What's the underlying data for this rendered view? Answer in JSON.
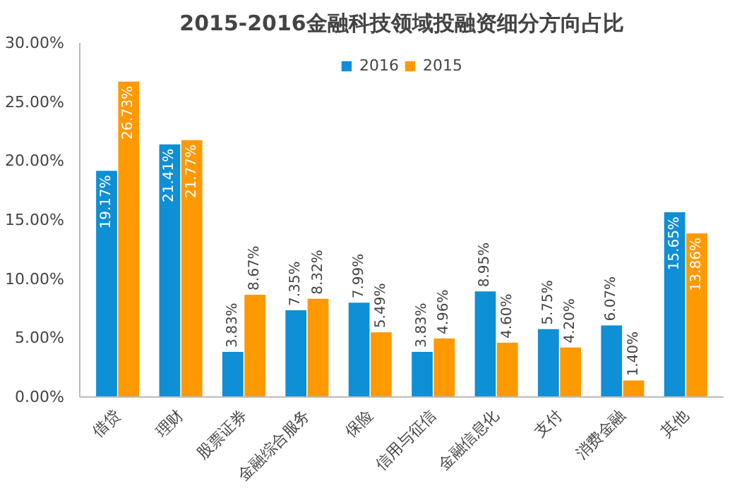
{
  "chart_data": {
    "type": "bar",
    "title": "2015-2016金融科技领域投融资细分方向占比",
    "categories": [
      "借贷",
      "理财",
      "股票证券",
      "金融综合服务",
      "保险",
      "信用与征信",
      "金融信息化",
      "支付",
      "消费金融",
      "其他"
    ],
    "series": [
      {
        "name": "2016",
        "color": "#0e8fd6",
        "values": [
          19.17,
          21.41,
          3.83,
          7.35,
          7.99,
          3.83,
          8.95,
          5.75,
          6.07,
          15.65
        ],
        "value_labels": [
          "19.17%",
          "21.41%",
          "3.83%",
          "7.35%",
          "7.99%",
          "3.83%",
          "8.95%",
          "5.75%",
          "6.07%",
          "15.65%"
        ]
      },
      {
        "name": "2015",
        "color": "#ff9900",
        "values": [
          26.73,
          21.77,
          8.67,
          8.32,
          5.49,
          4.96,
          4.6,
          4.2,
          1.4,
          13.86
        ],
        "value_labels": [
          "26.73%",
          "21.77%",
          "8.67%",
          "8.32%",
          "5.49%",
          "4.96%",
          "4.60%",
          "4.20%",
          "1.40%",
          "13.86%"
        ]
      }
    ],
    "ylim": [
      0,
      30
    ],
    "yticks": [
      {
        "value": 0,
        "label": "0.00%"
      },
      {
        "value": 5,
        "label": "5.00%"
      },
      {
        "value": 10,
        "label": "10.00%"
      },
      {
        "value": 15,
        "label": "15.00%"
      },
      {
        "value": 20,
        "label": "20.00%"
      },
      {
        "value": 25,
        "label": "25.00%"
      },
      {
        "value": 30,
        "label": "30.00%"
      }
    ],
    "legend": "top",
    "grid": false
  }
}
